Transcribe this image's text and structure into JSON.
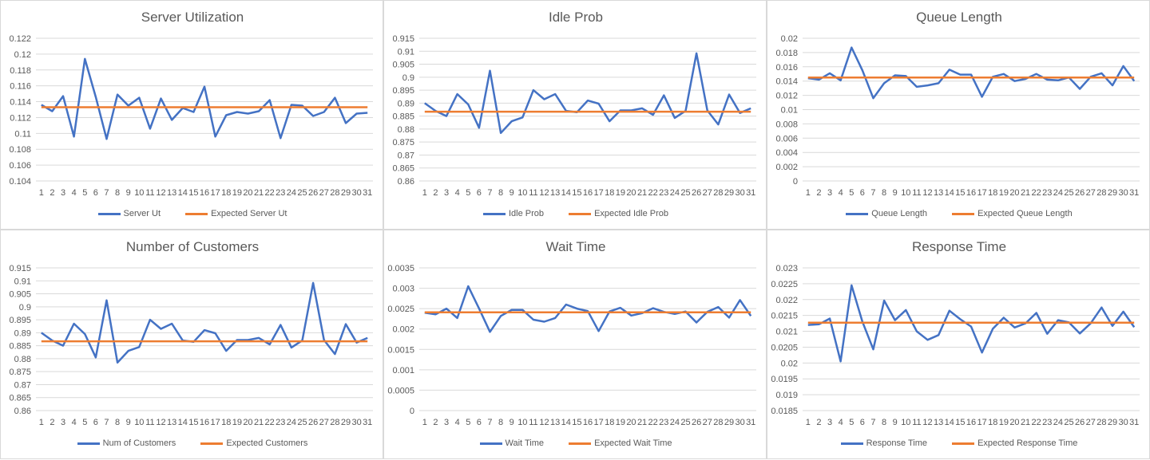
{
  "colors": {
    "actual": "#4472C4",
    "expected": "#ED7D31",
    "grid": "#d9d9d9",
    "text": "#595959"
  },
  "chart_data": [
    {
      "type": "line",
      "title": "Server Utilization",
      "xlabel": "",
      "ylabel": "",
      "x": [
        1,
        2,
        3,
        4,
        5,
        6,
        7,
        8,
        9,
        10,
        11,
        12,
        13,
        14,
        15,
        16,
        17,
        18,
        19,
        20,
        21,
        22,
        23,
        24,
        25,
        26,
        27,
        28,
        29,
        30,
        31
      ],
      "ylim": [
        0.104,
        0.122
      ],
      "yticks": [
        "0.104",
        "0.106",
        "0.108",
        "0.11",
        "0.112",
        "0.114",
        "0.116",
        "0.118",
        "0.12",
        "0.122"
      ],
      "grid": true,
      "legend": "bottom",
      "series": [
        {
          "name": "Server Ut",
          "values": [
            0.1136,
            0.1128,
            0.1147,
            0.1096,
            0.1194,
            0.1146,
            0.1093,
            0.1149,
            0.1135,
            0.1145,
            0.1106,
            0.1144,
            0.1117,
            0.1132,
            0.1127,
            0.1159,
            0.1096,
            0.1123,
            0.1127,
            0.1125,
            0.1128,
            0.1142,
            0.1094,
            0.1136,
            0.1135,
            0.1122,
            0.1127,
            0.1145,
            0.1113,
            0.1125,
            0.1126
          ]
        },
        {
          "name": "Expected Server Ut",
          "values": [
            0.1133,
            0.1133,
            0.1133,
            0.1133,
            0.1133,
            0.1133,
            0.1133,
            0.1133,
            0.1133,
            0.1133,
            0.1133,
            0.1133,
            0.1133,
            0.1133,
            0.1133,
            0.1133,
            0.1133,
            0.1133,
            0.1133,
            0.1133,
            0.1133,
            0.1133,
            0.1133,
            0.1133,
            0.1133,
            0.1133,
            0.1133,
            0.1133,
            0.1133,
            0.1133,
            0.1133
          ]
        }
      ]
    },
    {
      "type": "line",
      "title": "Idle Prob",
      "xlabel": "",
      "ylabel": "",
      "x": [
        1,
        2,
        3,
        4,
        5,
        6,
        7,
        8,
        9,
        10,
        11,
        12,
        13,
        14,
        15,
        16,
        17,
        18,
        19,
        20,
        21,
        22,
        23,
        24,
        25,
        26,
        27,
        28,
        29,
        30,
        31
      ],
      "ylim": [
        0.86,
        0.915
      ],
      "yticks": [
        "0.86",
        "0.865",
        "0.87",
        "0.875",
        "0.88",
        "0.885",
        "0.89",
        "0.895",
        "0.9",
        "0.905",
        "0.91",
        "0.915"
      ],
      "grid": true,
      "legend": "bottom",
      "series": [
        {
          "name": "Idle Prob",
          "values": [
            0.89,
            0.887,
            0.885,
            0.8935,
            0.8895,
            0.8805,
            0.9025,
            0.8785,
            0.883,
            0.8845,
            0.895,
            0.8915,
            0.8935,
            0.887,
            0.8865,
            0.891,
            0.8898,
            0.883,
            0.8872,
            0.8872,
            0.888,
            0.8855,
            0.893,
            0.8843,
            0.887,
            0.9092,
            0.8872,
            0.8818,
            0.8933,
            0.8862,
            0.888
          ]
        },
        {
          "name": "Expected Idle Prob",
          "values": [
            0.8867,
            0.8867,
            0.8867,
            0.8867,
            0.8867,
            0.8867,
            0.8867,
            0.8867,
            0.8867,
            0.8867,
            0.8867,
            0.8867,
            0.8867,
            0.8867,
            0.8867,
            0.8867,
            0.8867,
            0.8867,
            0.8867,
            0.8867,
            0.8867,
            0.8867,
            0.8867,
            0.8867,
            0.8867,
            0.8867,
            0.8867,
            0.8867,
            0.8867,
            0.8867,
            0.8867
          ]
        }
      ]
    },
    {
      "type": "line",
      "title": "Queue Length",
      "xlabel": "",
      "ylabel": "",
      "x": [
        1,
        2,
        3,
        4,
        5,
        6,
        7,
        8,
        9,
        10,
        11,
        12,
        13,
        14,
        15,
        16,
        17,
        18,
        19,
        20,
        21,
        22,
        23,
        24,
        25,
        26,
        27,
        28,
        29,
        30,
        31
      ],
      "ylim": [
        0,
        0.02
      ],
      "yticks": [
        "0",
        "0.002",
        "0.004",
        "0.006",
        "0.008",
        "0.01",
        "0.012",
        "0.014",
        "0.016",
        "0.018",
        "0.02"
      ],
      "grid": true,
      "legend": "bottom",
      "series": [
        {
          "name": "Queue Length",
          "values": [
            0.0144,
            0.0142,
            0.0151,
            0.0141,
            0.0187,
            0.0155,
            0.0116,
            0.0137,
            0.0148,
            0.0147,
            0.0132,
            0.0134,
            0.0137,
            0.0156,
            0.0149,
            0.0149,
            0.0118,
            0.0146,
            0.015,
            0.014,
            0.0143,
            0.015,
            0.0142,
            0.0141,
            0.0145,
            0.0129,
            0.0146,
            0.0151,
            0.0134,
            0.0161,
            0.014
          ]
        },
        {
          "name": "Expected Queue Length",
          "values": [
            0.0145,
            0.0145,
            0.0145,
            0.0145,
            0.0145,
            0.0145,
            0.0145,
            0.0145,
            0.0145,
            0.0145,
            0.0145,
            0.0145,
            0.0145,
            0.0145,
            0.0145,
            0.0145,
            0.0145,
            0.0145,
            0.0145,
            0.0145,
            0.0145,
            0.0145,
            0.0145,
            0.0145,
            0.0145,
            0.0145,
            0.0145,
            0.0145,
            0.0145,
            0.0145,
            0.0145
          ]
        }
      ]
    },
    {
      "type": "line",
      "title": "Number of Customers",
      "xlabel": "",
      "ylabel": "",
      "x": [
        1,
        2,
        3,
        4,
        5,
        6,
        7,
        8,
        9,
        10,
        11,
        12,
        13,
        14,
        15,
        16,
        17,
        18,
        19,
        20,
        21,
        22,
        23,
        24,
        25,
        26,
        27,
        28,
        29,
        30,
        31
      ],
      "ylim": [
        0.86,
        0.915
      ],
      "yticks": [
        "0.86",
        "0.865",
        "0.87",
        "0.875",
        "0.88",
        "0.885",
        "0.89",
        "0.895",
        "0.9",
        "0.905",
        "0.91",
        "0.915"
      ],
      "grid": true,
      "legend": "bottom",
      "series": [
        {
          "name": "Num of Customers",
          "values": [
            0.89,
            0.887,
            0.885,
            0.8935,
            0.8895,
            0.8805,
            0.9025,
            0.8785,
            0.883,
            0.8845,
            0.895,
            0.8915,
            0.8935,
            0.887,
            0.8865,
            0.891,
            0.8898,
            0.883,
            0.8872,
            0.8872,
            0.888,
            0.8855,
            0.893,
            0.8843,
            0.887,
            0.9092,
            0.8872,
            0.8818,
            0.8933,
            0.8862,
            0.888
          ]
        },
        {
          "name": "Expected Customers",
          "values": [
            0.8867,
            0.8867,
            0.8867,
            0.8867,
            0.8867,
            0.8867,
            0.8867,
            0.8867,
            0.8867,
            0.8867,
            0.8867,
            0.8867,
            0.8867,
            0.8867,
            0.8867,
            0.8867,
            0.8867,
            0.8867,
            0.8867,
            0.8867,
            0.8867,
            0.8867,
            0.8867,
            0.8867,
            0.8867,
            0.8867,
            0.8867,
            0.8867,
            0.8867,
            0.8867,
            0.8867
          ]
        }
      ]
    },
    {
      "type": "line",
      "title": "Wait Time",
      "xlabel": "",
      "ylabel": "",
      "x": [
        1,
        2,
        3,
        4,
        5,
        6,
        7,
        8,
        9,
        10,
        11,
        12,
        13,
        14,
        15,
        16,
        17,
        18,
        19,
        20,
        21,
        22,
        23,
        24,
        25,
        26,
        27,
        28,
        29,
        30,
        31
      ],
      "ylim": [
        0,
        0.0035
      ],
      "yticks": [
        "0",
        "0.0005",
        "0.001",
        "0.0015",
        "0.002",
        "0.0025",
        "0.003",
        "0.0035"
      ],
      "grid": true,
      "legend": "bottom",
      "series": [
        {
          "name": "Wait Time",
          "values": [
            0.0024,
            0.00236,
            0.0025,
            0.00227,
            0.00305,
            0.0025,
            0.00193,
            0.00232,
            0.00247,
            0.00247,
            0.00223,
            0.00218,
            0.00227,
            0.0026,
            0.0025,
            0.00244,
            0.00195,
            0.00243,
            0.00252,
            0.00233,
            0.00239,
            0.00251,
            0.00242,
            0.00237,
            0.00243,
            0.00216,
            0.00242,
            0.00254,
            0.00228,
            0.00271,
            0.00232
          ]
        },
        {
          "name": "Expected Wait Time",
          "values": [
            0.00241,
            0.00241,
            0.00241,
            0.00241,
            0.00241,
            0.00241,
            0.00241,
            0.00241,
            0.00241,
            0.00241,
            0.00241,
            0.00241,
            0.00241,
            0.00241,
            0.00241,
            0.00241,
            0.00241,
            0.00241,
            0.00241,
            0.00241,
            0.00241,
            0.00241,
            0.00241,
            0.00241,
            0.00241,
            0.00241,
            0.00241,
            0.00241,
            0.00241,
            0.00241,
            0.00241
          ]
        }
      ]
    },
    {
      "type": "line",
      "title": "Response Time",
      "xlabel": "",
      "ylabel": "",
      "x": [
        1,
        2,
        3,
        4,
        5,
        6,
        7,
        8,
        9,
        10,
        11,
        12,
        13,
        14,
        15,
        16,
        17,
        18,
        19,
        20,
        21,
        22,
        23,
        24,
        25,
        26,
        27,
        28,
        29,
        30,
        31
      ],
      "ylim": [
        0.0185,
        0.023
      ],
      "yticks": [
        "0.0185",
        "0.019",
        "0.0195",
        "0.02",
        "0.0205",
        "0.021",
        "0.0215",
        "0.022",
        "0.0225",
        "0.023"
      ],
      "grid": true,
      "legend": "bottom",
      "series": [
        {
          "name": "Response Time",
          "values": [
            0.0212,
            0.02122,
            0.0214,
            0.02005,
            0.02245,
            0.0213,
            0.02043,
            0.02197,
            0.02135,
            0.02167,
            0.021,
            0.02073,
            0.02088,
            0.02165,
            0.02138,
            0.02115,
            0.02033,
            0.02108,
            0.02143,
            0.02112,
            0.02125,
            0.02158,
            0.02092,
            0.02135,
            0.02128,
            0.02093,
            0.02125,
            0.02175,
            0.02117,
            0.02162,
            0.02113
          ]
        },
        {
          "name": "Expected Response Time",
          "values": [
            0.02127,
            0.02127,
            0.02127,
            0.02127,
            0.02127,
            0.02127,
            0.02127,
            0.02127,
            0.02127,
            0.02127,
            0.02127,
            0.02127,
            0.02127,
            0.02127,
            0.02127,
            0.02127,
            0.02127,
            0.02127,
            0.02127,
            0.02127,
            0.02127,
            0.02127,
            0.02127,
            0.02127,
            0.02127,
            0.02127,
            0.02127,
            0.02127,
            0.02127,
            0.02127,
            0.02127
          ]
        }
      ]
    }
  ]
}
